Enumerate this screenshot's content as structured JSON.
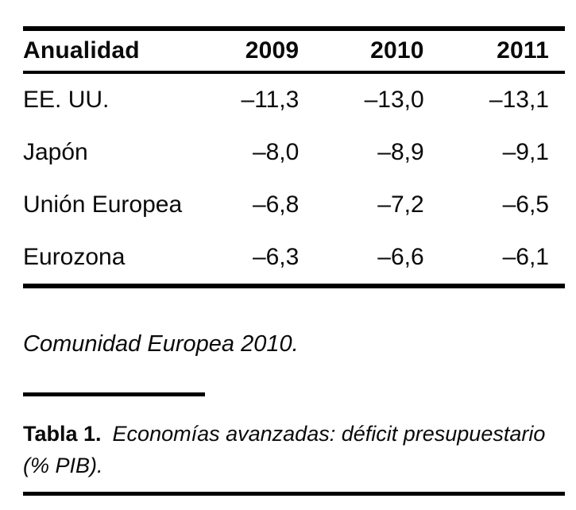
{
  "page": {
    "background": "#ffffff",
    "text_color": "#0a0a0a",
    "rule_color": "#000000"
  },
  "table": {
    "columns": [
      "Anualidad",
      "2009",
      "2010",
      "2011"
    ],
    "rows": [
      {
        "label": "EE. UU.",
        "values": [
          "–11,3",
          "–13,0",
          "–13,1"
        ]
      },
      {
        "label": "Japón",
        "values": [
          "–8,0",
          "–8,9",
          "–9,1"
        ]
      },
      {
        "label": "Unión Europea",
        "values": [
          "–6,8",
          "–7,2",
          "–6,5"
        ]
      },
      {
        "label": "Eurozona",
        "values": [
          "–6,3",
          "–6,6",
          "–6,1"
        ]
      }
    ]
  },
  "source_note": "Comunidad Europea 2010.",
  "caption": {
    "label": "Tabla 1.",
    "text": "Economías avanzadas: déficit presupuestario (% PIB)."
  },
  "chart_data": {
    "type": "table",
    "title": "Tabla 1. Economías avanzadas: déficit presupuestario (% PIB).",
    "columns": [
      "Anualidad",
      "2009",
      "2010",
      "2011"
    ],
    "rows": [
      [
        "EE. UU.",
        -11.3,
        -13.0,
        -13.1
      ],
      [
        "Japón",
        -8.0,
        -8.9,
        -9.1
      ],
      [
        "Unión Europea",
        -6.8,
        -7.2,
        -6.5
      ],
      [
        "Eurozona",
        -6.3,
        -6.6,
        -6.1
      ]
    ],
    "units": "% PIB",
    "source": "Comunidad Europea 2010."
  }
}
